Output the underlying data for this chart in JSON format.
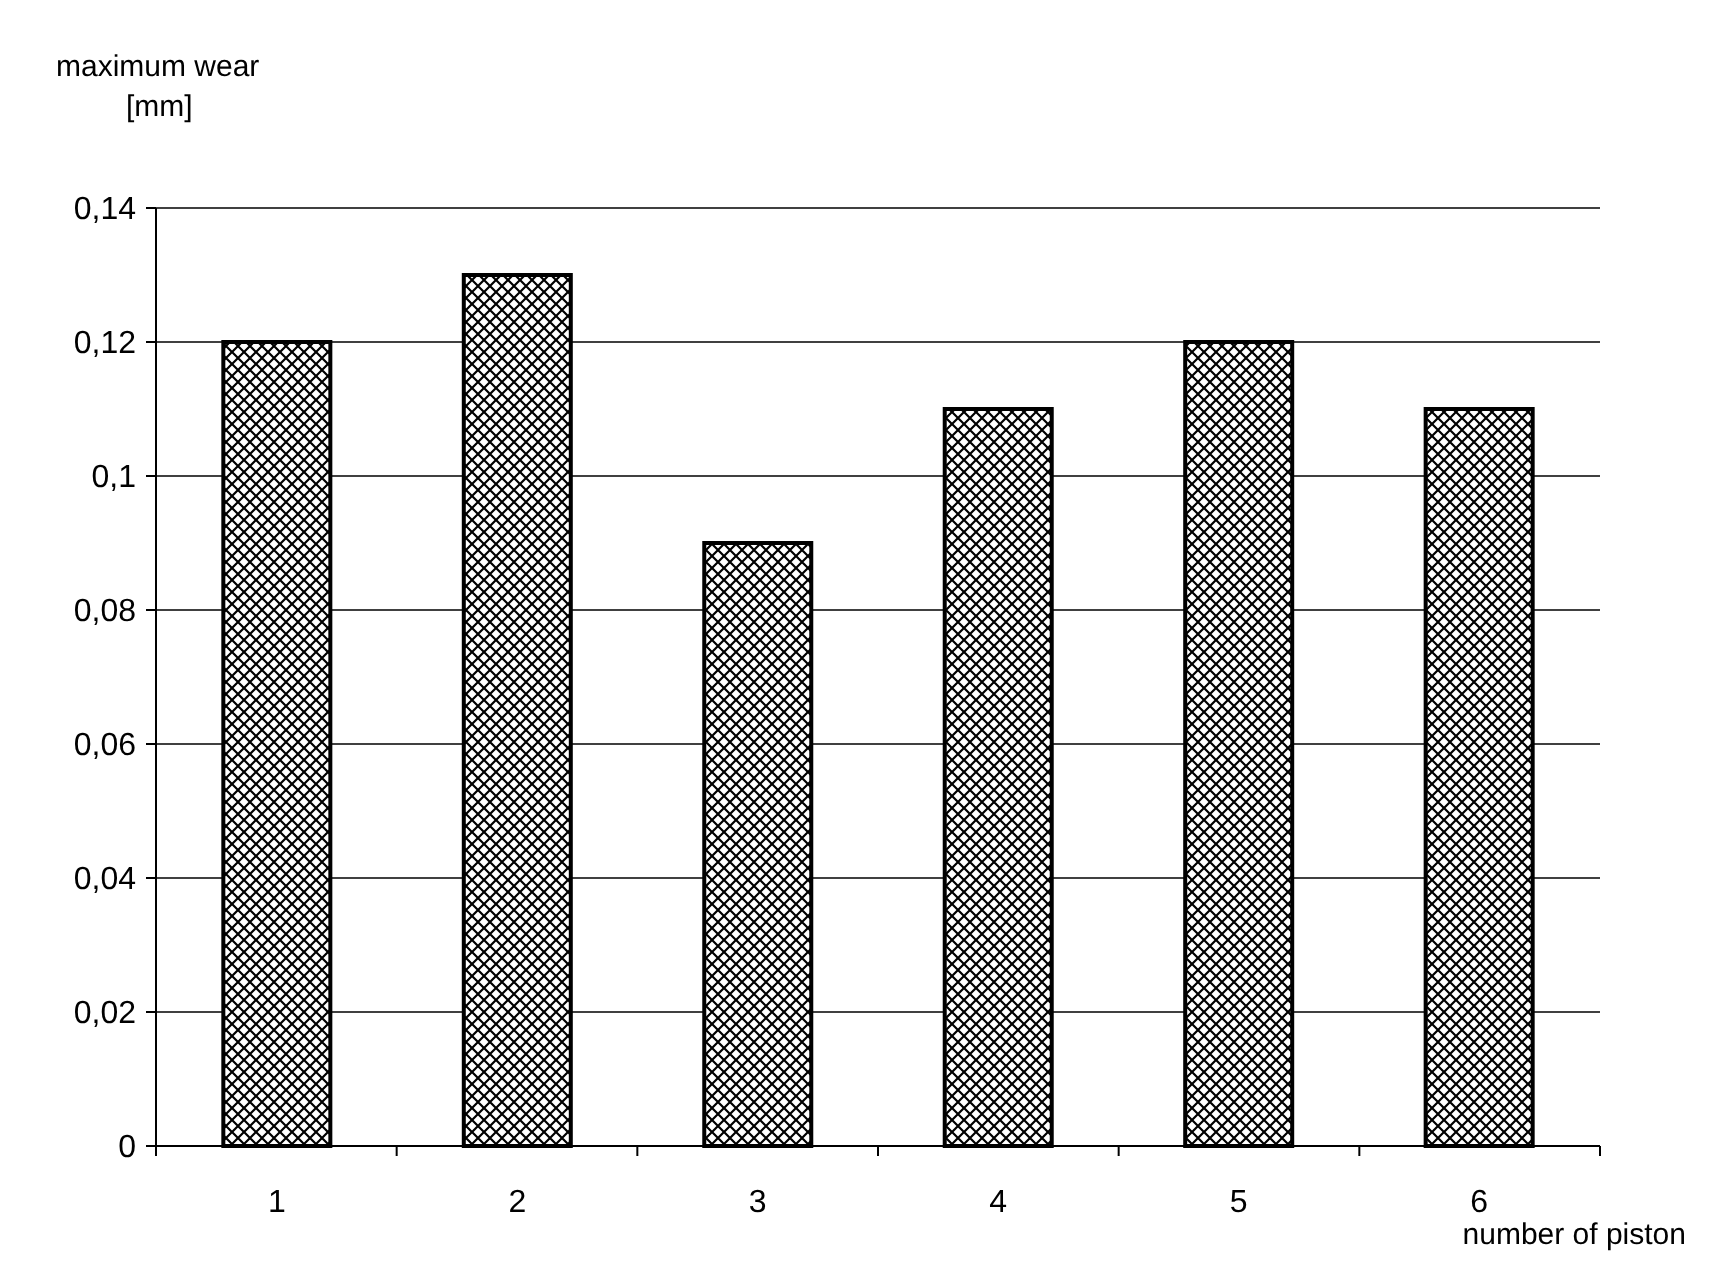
{
  "chart_data": {
    "type": "bar",
    "xlabel": "number of piston",
    "ylabel": "maximum wear [mm]",
    "categories": [
      "1",
      "2",
      "3",
      "4",
      "5",
      "6"
    ],
    "values": [
      0.12,
      0.13,
      0.09,
      0.11,
      0.12,
      0.11
    ],
    "color": "#000000",
    "ylim": [
      0,
      0.14
    ],
    "yticks": [
      0,
      {
        "value": 0.02,
        "label": "0,02"
      },
      {
        "value": 0.04,
        "label": "0,04"
      },
      {
        "value": 0.06,
        "label": "0,06"
      },
      {
        "value": 0.08,
        "label": "0,08"
      },
      {
        "value": 0.1,
        "label": "0,1"
      },
      {
        "value": 0.12,
        "label": "0,12"
      },
      {
        "value": 0.14,
        "label": "0,14"
      }
    ],
    "grid": "y"
  }
}
